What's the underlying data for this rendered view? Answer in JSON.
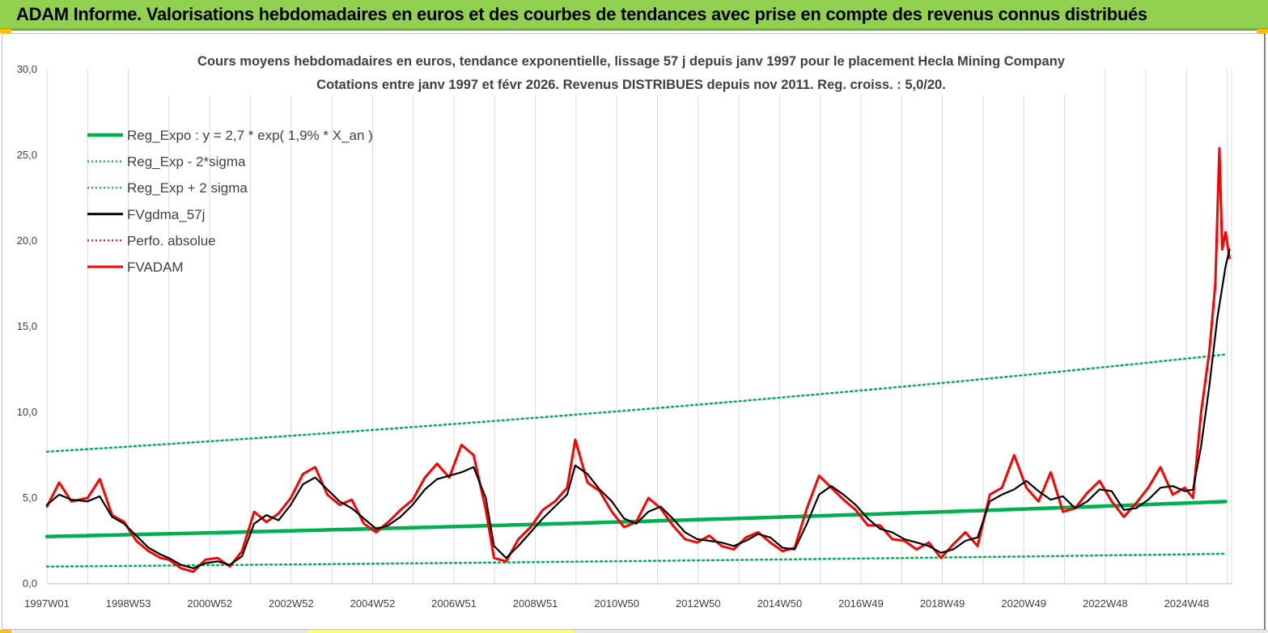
{
  "header": {
    "title": "ADAM Informe. Valorisations hebdomadaires en euros et des courbes de tendances avec prise en compte des revenus connus distribués"
  },
  "colors": {
    "banner": "#92d050",
    "accent": "#ffc000",
    "trend_green": "#00b050",
    "price_red": "#ff0000",
    "smooth_black": "#000000",
    "grid": "#d9d9d9"
  },
  "chart_data": {
    "type": "line",
    "title": "Cours moyens hebdomadaires en euros, tendance exponentielle, lissage 57 j depuis janv 1997 pour le placement Hecla Mining Company",
    "subtitle": "Cotations entre janv 1997 et févr 2026. Revenus DISTRIBUES depuis nov 2011. Reg. croiss. : 5,0/20.",
    "xlabel": "",
    "ylabel": "",
    "ylim": [
      0,
      30
    ],
    "y_ticks": [
      "0,0",
      "5,0",
      "10,0",
      "15,0",
      "20,0",
      "25,0",
      "30,0"
    ],
    "x_ticks": [
      "1997W01",
      "1998W53",
      "2000W52",
      "2002W52",
      "2004W52",
      "2006W51",
      "2008W51",
      "2010W50",
      "2012W50",
      "2014W50",
      "2016W49",
      "2018W49",
      "2020W49",
      "2022W48",
      "2024W48"
    ],
    "x_range": [
      1997.0,
      2026.15
    ],
    "grid": "vertical",
    "legend_position": "top-left",
    "series": [
      {
        "name": "Reg_Expo : y = 2,7 * exp( 1,9% *  X_an )",
        "style": "solid-thick",
        "color": "#00b050",
        "x": [
          1997.0,
          2026.1
        ],
        "y": [
          2.75,
          4.8
        ]
      },
      {
        "name": "Reg_Exp - 2*sigma",
        "style": "dotted",
        "color": "#00b050",
        "x": [
          1997.0,
          2026.1
        ],
        "y": [
          1.0,
          1.75
        ]
      },
      {
        "name": "Reg_Exp + 2 sigma",
        "style": "dotted",
        "color": "#00b050",
        "x": [
          1997.0,
          2026.1
        ],
        "y": [
          7.7,
          13.4
        ]
      },
      {
        "name": "FVgdma_57j",
        "style": "solid",
        "color": "#000000",
        "x": [
          1997.0,
          1997.3,
          1997.6,
          1998.0,
          1998.3,
          1998.6,
          1998.9,
          1999.2,
          1999.5,
          1999.8,
          2000.0,
          2000.3,
          2000.6,
          2000.9,
          2001.2,
          2001.5,
          2001.8,
          2002.1,
          2002.4,
          2002.7,
          2003.0,
          2003.3,
          2003.6,
          2003.9,
          2004.2,
          2004.5,
          2004.8,
          2005.1,
          2005.4,
          2005.7,
          2006.0,
          2006.3,
          2006.6,
          2006.9,
          2007.2,
          2007.5,
          2007.8,
          2008.0,
          2008.3,
          2008.6,
          2008.9,
          2009.2,
          2009.5,
          2009.8,
          2010.0,
          2010.3,
          2010.6,
          2010.9,
          2011.2,
          2011.5,
          2011.8,
          2012.1,
          2012.4,
          2012.7,
          2013.0,
          2013.3,
          2013.6,
          2013.9,
          2014.2,
          2014.5,
          2014.8,
          2015.1,
          2015.4,
          2015.7,
          2016.0,
          2016.3,
          2016.6,
          2016.9,
          2017.2,
          2017.5,
          2017.8,
          2018.1,
          2018.4,
          2018.7,
          2019.0,
          2019.3,
          2019.6,
          2019.9,
          2020.2,
          2020.5,
          2020.8,
          2021.1,
          2021.4,
          2021.7,
          2022.0,
          2022.3,
          2022.6,
          2022.9,
          2023.2,
          2023.5,
          2023.8,
          2024.1,
          2024.4,
          2024.7,
          2025.0,
          2025.2,
          2025.4,
          2025.6,
          2025.8,
          2026.0,
          2026.1
        ],
        "y": [
          4.6,
          5.2,
          4.9,
          4.8,
          5.1,
          3.9,
          3.5,
          2.8,
          2.1,
          1.7,
          1.5,
          1.1,
          0.9,
          1.2,
          1.3,
          1.1,
          1.6,
          3.5,
          4.0,
          3.7,
          4.6,
          5.8,
          6.2,
          5.5,
          4.8,
          4.4,
          3.8,
          3.2,
          3.4,
          3.9,
          4.6,
          5.5,
          6.1,
          6.3,
          6.5,
          6.8,
          5.0,
          2.2,
          1.5,
          2.2,
          3.0,
          3.8,
          4.5,
          5.2,
          6.9,
          6.4,
          5.5,
          4.8,
          3.8,
          3.5,
          4.2,
          4.5,
          3.8,
          3.0,
          2.6,
          2.5,
          2.4,
          2.2,
          2.5,
          2.9,
          2.7,
          2.1,
          2.0,
          3.5,
          5.2,
          5.7,
          5.2,
          4.6,
          3.8,
          3.2,
          3.0,
          2.6,
          2.4,
          2.2,
          1.8,
          2.0,
          2.5,
          2.7,
          4.8,
          5.2,
          5.5,
          6.0,
          5.4,
          4.9,
          5.1,
          4.4,
          4.8,
          5.5,
          5.4,
          4.3,
          4.4,
          4.9,
          5.6,
          5.7,
          5.4,
          5.5,
          8.0,
          11.5,
          15.5,
          18.5,
          19.5
        ]
      },
      {
        "name": "Perfo. absolue",
        "style": "dotted",
        "color": "#ff0000",
        "x": [],
        "y": []
      },
      {
        "name": "FVADAM",
        "style": "solid-thick",
        "color": "#ff0000",
        "x": [
          1997.0,
          1997.3,
          1997.6,
          1998.0,
          1998.3,
          1998.6,
          1998.9,
          1999.2,
          1999.5,
          1999.8,
          2000.0,
          2000.3,
          2000.6,
          2000.9,
          2001.2,
          2001.5,
          2001.8,
          2002.1,
          2002.4,
          2002.7,
          2003.0,
          2003.3,
          2003.6,
          2003.9,
          2004.2,
          2004.5,
          2004.8,
          2005.1,
          2005.4,
          2005.7,
          2006.0,
          2006.3,
          2006.6,
          2006.9,
          2007.2,
          2007.5,
          2007.8,
          2008.0,
          2008.3,
          2008.6,
          2008.9,
          2009.2,
          2009.5,
          2009.8,
          2010.0,
          2010.3,
          2010.6,
          2010.9,
          2011.2,
          2011.5,
          2011.8,
          2012.1,
          2012.4,
          2012.7,
          2013.0,
          2013.3,
          2013.6,
          2013.9,
          2014.2,
          2014.5,
          2014.8,
          2015.1,
          2015.4,
          2015.7,
          2016.0,
          2016.3,
          2016.6,
          2016.9,
          2017.2,
          2017.5,
          2017.8,
          2018.1,
          2018.4,
          2018.7,
          2019.0,
          2019.3,
          2019.6,
          2019.9,
          2020.2,
          2020.5,
          2020.8,
          2021.1,
          2021.4,
          2021.7,
          2022.0,
          2022.3,
          2022.6,
          2022.9,
          2023.2,
          2023.5,
          2023.8,
          2024.1,
          2024.4,
          2024.7,
          2025.0,
          2025.2,
          2025.4,
          2025.6,
          2025.75,
          2025.85,
          2025.92,
          2026.0,
          2026.1
        ],
        "y": [
          4.5,
          5.9,
          4.8,
          5.0,
          6.1,
          4.0,
          3.6,
          2.5,
          1.9,
          1.5,
          1.4,
          0.9,
          0.7,
          1.4,
          1.5,
          1.0,
          1.9,
          4.2,
          3.6,
          4.1,
          5.0,
          6.4,
          6.8,
          5.2,
          4.6,
          4.9,
          3.5,
          3.0,
          3.6,
          4.3,
          4.9,
          6.2,
          7.0,
          6.2,
          8.1,
          7.5,
          4.3,
          1.5,
          1.3,
          2.6,
          3.3,
          4.3,
          4.8,
          5.6,
          8.4,
          5.9,
          5.4,
          4.2,
          3.3,
          3.6,
          5.0,
          4.4,
          3.4,
          2.6,
          2.4,
          2.8,
          2.2,
          2.0,
          2.7,
          3.0,
          2.4,
          1.9,
          2.1,
          4.4,
          6.3,
          5.6,
          4.9,
          4.3,
          3.4,
          3.4,
          2.6,
          2.5,
          2.0,
          2.4,
          1.5,
          2.3,
          3.0,
          2.2,
          5.2,
          5.6,
          7.5,
          5.6,
          4.8,
          6.5,
          4.2,
          4.4,
          5.3,
          6.0,
          4.8,
          3.9,
          4.7,
          5.6,
          6.8,
          5.2,
          5.6,
          5.0,
          10.0,
          13.5,
          17.5,
          25.4,
          19.5,
          20.5,
          19.0
        ]
      }
    ]
  }
}
